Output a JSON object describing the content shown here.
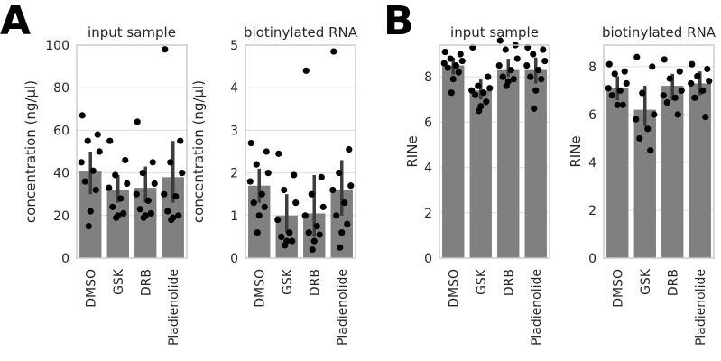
{
  "panel_labels": [
    "A",
    "B"
  ],
  "chart_data": [
    {
      "type": "bar",
      "title": "input sample",
      "ylabel": "concentration (ng/µl)",
      "ylim": [
        0,
        100
      ],
      "yticks": [
        0,
        20,
        40,
        60,
        80,
        100
      ],
      "categories": [
        "DMSO",
        "GSK",
        "DRB",
        "Pladienolide"
      ],
      "values": [
        41,
        32,
        33,
        38
      ],
      "ci": [
        [
          30,
          50
        ],
        [
          26,
          39
        ],
        [
          26,
          43
        ],
        [
          26,
          55
        ]
      ],
      "points": [
        [
          67,
          58,
          55,
          50,
          45,
          41,
          36,
          32,
          22,
          15
        ],
        [
          55,
          46,
          39,
          35,
          33,
          28,
          24,
          21,
          20,
          19
        ],
        [
          64,
          45,
          40,
          35,
          30,
          27,
          23,
          21,
          20,
          19
        ],
        [
          98,
          55,
          45,
          40,
          30,
          29,
          22,
          20,
          19,
          18
        ]
      ]
    },
    {
      "type": "bar",
      "title": "biotinylated RNA",
      "ylabel": "concentration (ng/µl)",
      "ylim": [
        0,
        5
      ],
      "yticks": [
        0,
        1,
        2,
        3,
        4,
        5
      ],
      "categories": [
        "DMSO",
        "GSK",
        "DRB",
        "Pladienolide"
      ],
      "values": [
        1.7,
        1.0,
        1.05,
        1.6
      ],
      "ci": [
        [
          1.3,
          2.1
        ],
        [
          0.6,
          1.5
        ],
        [
          0.5,
          1.95
        ],
        [
          1.0,
          2.3
        ]
      ],
      "points": [
        [
          2.7,
          2.5,
          2.2,
          2.0,
          1.8,
          1.5,
          1.3,
          1.2,
          1.0,
          0.6
        ],
        [
          2.45,
          1.95,
          1.6,
          1.3,
          0.9,
          0.6,
          0.5,
          0.4,
          0.4,
          0.3
        ],
        [
          4.4,
          1.9,
          1.5,
          1.2,
          1.0,
          0.75,
          0.6,
          0.55,
          0.4,
          0.2
        ],
        [
          4.85,
          2.55,
          2.0,
          1.7,
          1.6,
          1.3,
          1.0,
          0.8,
          0.6,
          0.25
        ]
      ]
    },
    {
      "type": "bar",
      "title": "input sample",
      "ylabel": "RINe",
      "ylim": [
        0,
        9.4
      ],
      "yticks": [
        0,
        2,
        4,
        6,
        8
      ],
      "categories": [
        "DMSO",
        "GSK",
        "DRB",
        "Pladienolide"
      ],
      "values": [
        8.5,
        7.4,
        8.3,
        8.3
      ],
      "ci": [
        [
          8.1,
          8.85
        ],
        [
          7.0,
          7.9
        ],
        [
          8.0,
          8.8
        ],
        [
          7.7,
          8.85
        ]
      ],
      "points": [
        [
          9.1,
          9.0,
          8.8,
          8.7,
          8.6,
          8.5,
          8.4,
          8.2,
          7.9,
          7.3
        ],
        [
          9.3,
          8.0,
          7.6,
          7.5,
          7.4,
          7.3,
          7.2,
          6.9,
          6.7,
          6.5
        ],
        [
          9.6,
          9.4,
          9.2,
          8.8,
          8.5,
          8.3,
          8.0,
          7.9,
          7.8,
          7.6
        ],
        [
          9.3,
          9.2,
          9.0,
          8.7,
          8.5,
          8.3,
          8.0,
          7.9,
          7.4,
          6.6
        ]
      ]
    },
    {
      "type": "bar",
      "title": "biotinylated RNA",
      "ylabel": "RINe",
      "ylim": [
        0,
        8.9
      ],
      "yticks": [
        0,
        2,
        4,
        6,
        8
      ],
      "categories": [
        "DMSO",
        "GSK",
        "DRB",
        "Pladienolide"
      ],
      "values": [
        7.1,
        6.2,
        7.2,
        7.3
      ],
      "ci": [
        [
          6.6,
          7.6
        ],
        [
          5.5,
          7.2
        ],
        [
          6.6,
          7.7
        ],
        [
          6.8,
          7.8
        ]
      ],
      "points": [
        [
          8.1,
          7.8,
          7.7,
          7.3,
          7.1,
          7.0,
          6.8,
          6.4,
          6.4
        ],
        [
          8.4,
          8.0,
          6.9,
          6.0,
          5.8,
          5.4,
          5.0,
          4.5
        ],
        [
          8.3,
          7.8,
          7.5,
          7.0,
          6.8,
          6.7,
          6.5,
          6.0
        ],
        [
          8.1,
          7.9,
          7.6,
          7.4,
          7.3,
          7.0,
          6.7,
          5.9
        ]
      ]
    }
  ]
}
